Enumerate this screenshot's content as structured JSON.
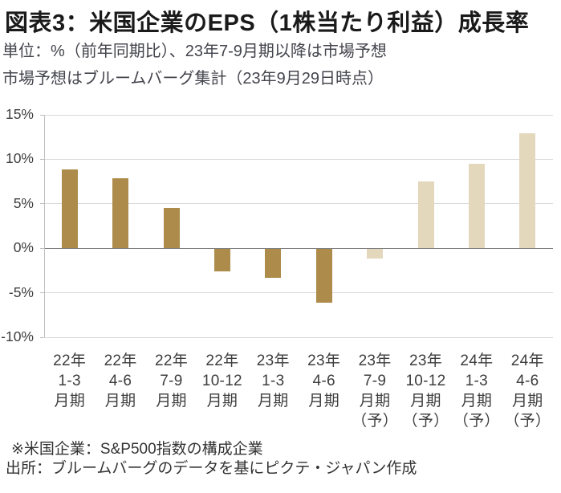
{
  "header": {
    "title": "図表3：米国企業のEPS（1株当たり利益）成長率",
    "subtitle_line1": "単位：%（前年同期比）、23年7-9月期以降は市場予想",
    "subtitle_line2": "市場予想はブルームバーグ集計（23年9月29日時点）"
  },
  "chart_data": {
    "type": "bar",
    "title": "米国企業のEPS（1株当たり利益）成長率",
    "ylabel": "%（前年同期比）",
    "categories": [
      [
        "22年",
        "1-3",
        "月期"
      ],
      [
        "22年",
        "4-6",
        "月期"
      ],
      [
        "22年",
        "7-9",
        "月期"
      ],
      [
        "22年",
        "10-12",
        "月期"
      ],
      [
        "23年",
        "1-3",
        "月期"
      ],
      [
        "23年",
        "4-6",
        "月期"
      ],
      [
        "23年",
        "7-9",
        "月期",
        "（予）"
      ],
      [
        "23年",
        "10-12",
        "月期",
        "（予）"
      ],
      [
        "24年",
        "1-3",
        "月期",
        "（予）"
      ],
      [
        "24年",
        "4-6",
        "月期",
        "（予）"
      ]
    ],
    "values": [
      8.9,
      7.9,
      4.5,
      -2.5,
      -3.2,
      -6.0,
      -1.1,
      7.5,
      9.5,
      12.9
    ],
    "forecast_start_index": 6,
    "colors": {
      "actual": "#ad8c4b",
      "forecast": "#e3d7bc"
    },
    "yticks": [
      15,
      10,
      5,
      0,
      -5,
      -10
    ],
    "ytick_suffix": "%",
    "ylim": [
      -10,
      15
    ],
    "grid": true,
    "gridline_color": "#d9d9d9",
    "zeroline_color": "#7f7f7f"
  },
  "footer": {
    "note1": "※米国企業：S&P500指数の構成企業",
    "note2": "出所：ブルームバーグのデータを基にピクテ・ジャパン作成"
  }
}
